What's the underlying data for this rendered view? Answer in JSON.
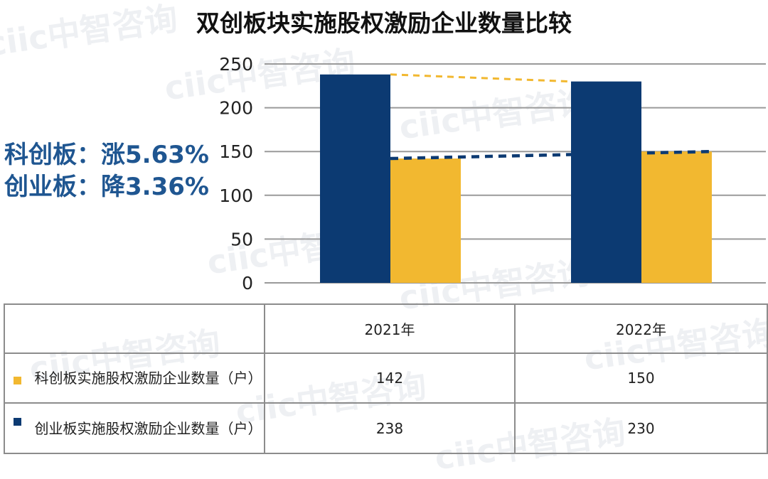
{
  "watermark": "ciic中智咨询",
  "chart_data": {
    "type": "bar",
    "title": "双创板块实施股权激励企业数量比较",
    "categories": [
      "2021年",
      "2022年"
    ],
    "ylim": [
      0,
      250
    ],
    "yticks": [
      "0",
      "50",
      "100",
      "150",
      "200",
      "250"
    ],
    "grid": true,
    "series": [
      {
        "name": "科创板实施股权激励企业数量（户）",
        "values": [
          142,
          150
        ],
        "color": "#f2b830"
      },
      {
        "name": "创业板实施股权激励企业数量（户）",
        "values": [
          238,
          230
        ],
        "color": "#0c3a72"
      }
    ],
    "annotations": [
      "科创板：涨5.63%",
      "创业板：降3.36%"
    ]
  },
  "table": {
    "rows": [
      {
        "label": "科创板实施股权激励企业数量（户）",
        "values": [
          "142",
          "150"
        ]
      },
      {
        "label": "创业板实施股权激励企业数量（户）",
        "values": [
          "238",
          "230"
        ]
      }
    ]
  }
}
